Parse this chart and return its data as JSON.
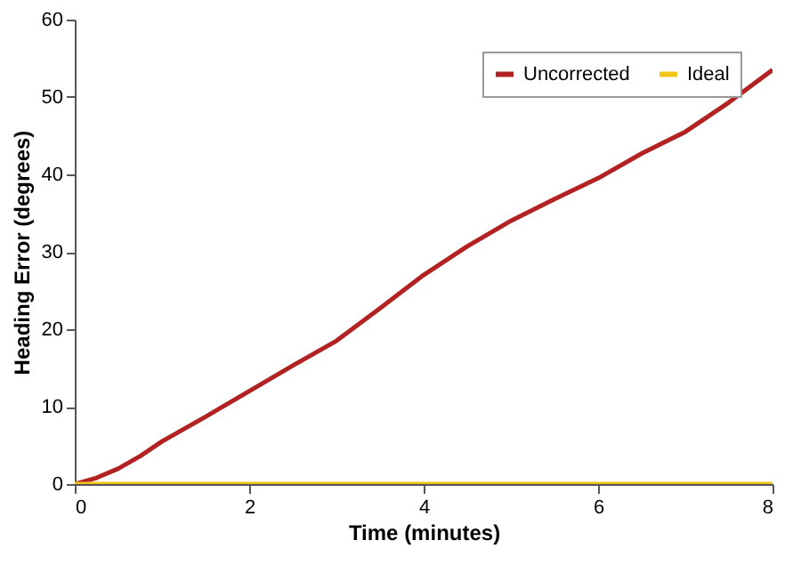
{
  "chart_data": {
    "type": "line",
    "xlabel": "Time (minutes)",
    "ylabel": "Heading Error (degrees)",
    "x": [
      0,
      0.25,
      0.5,
      0.75,
      1,
      1.5,
      2,
      2.5,
      3,
      3.5,
      4,
      4.5,
      5,
      5.5,
      6,
      6.5,
      7,
      7.5,
      8
    ],
    "series": [
      {
        "name": "Uncorrected",
        "color": "#b22222",
        "values": [
          0,
          0.8,
          2,
          3.6,
          5.5,
          8.7,
          12,
          15.3,
          18.5,
          22.7,
          27,
          30.7,
          34,
          36.8,
          39.5,
          42.7,
          45.5,
          49.3,
          53.5
        ]
      },
      {
        "name": "Ideal",
        "color": "#f2c418",
        "values": [
          0,
          0,
          0,
          0,
          0,
          0,
          0,
          0,
          0,
          0,
          0,
          0,
          0,
          0,
          0,
          0,
          0,
          0,
          0
        ]
      }
    ],
    "xlim": [
      0,
      8
    ],
    "xticks": [
      0,
      2,
      4,
      6,
      8
    ],
    "ylim": [
      0,
      60
    ],
    "yticks": [
      0,
      10,
      20,
      30,
      40,
      50,
      60
    ],
    "grid": false,
    "legend": "top right"
  }
}
